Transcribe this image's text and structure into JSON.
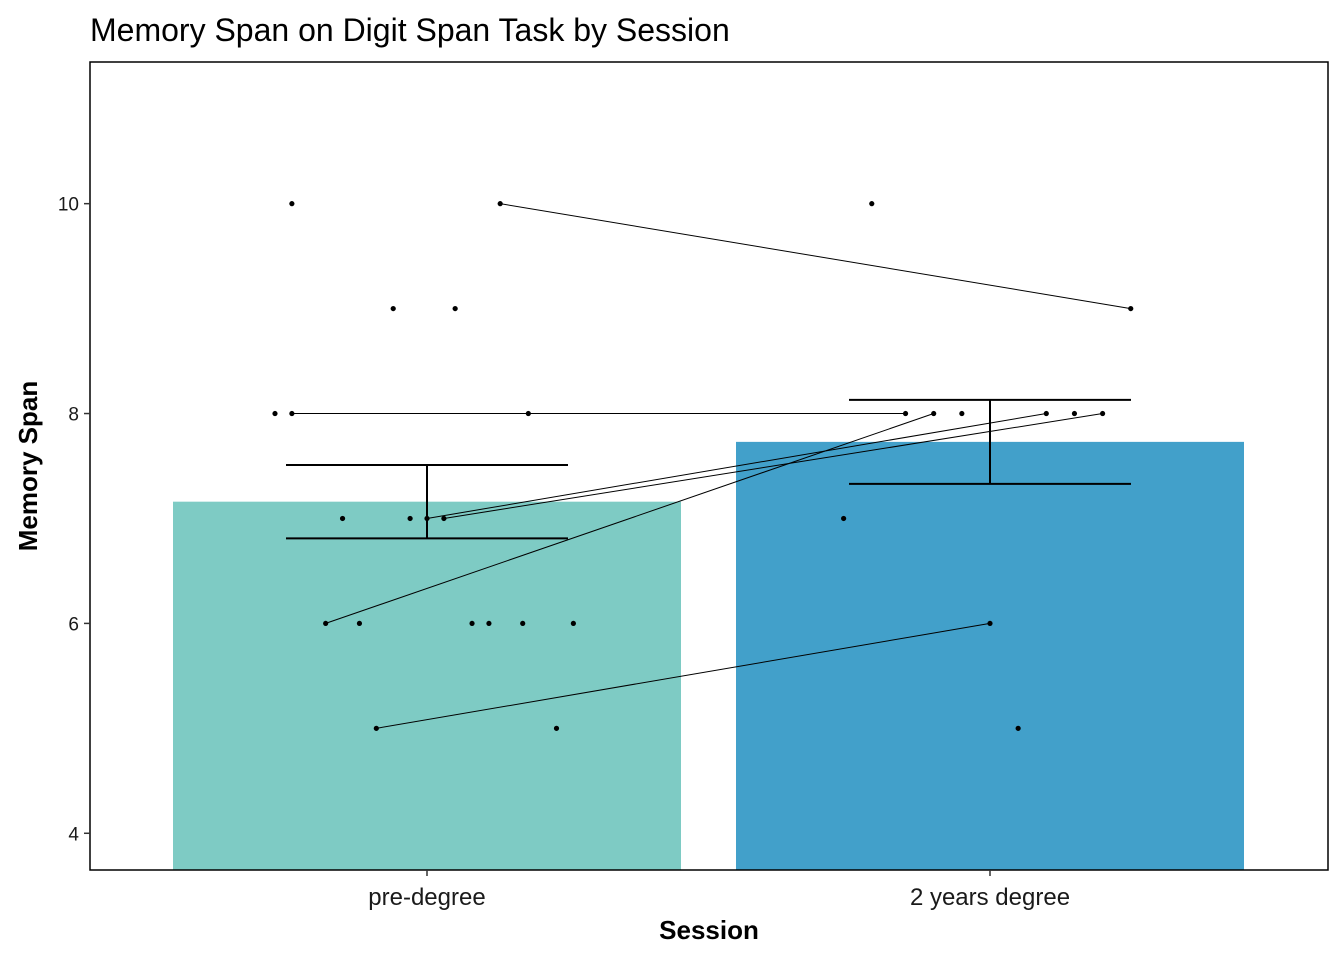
{
  "chart_data": {
    "type": "bar",
    "title": "Memory Span on Digit Span Task by Session",
    "xlabel": "Session",
    "ylabel": "Memory Span",
    "categories": [
      "pre-degree",
      "2 years degree"
    ],
    "values": [
      7.16,
      7.73
    ],
    "error_bars": [
      {
        "lower": 6.81,
        "upper": 7.51
      },
      {
        "lower": 7.33,
        "upper": 8.13
      }
    ],
    "bar_colors": [
      "#7ECBC4",
      "#42A0CA"
    ],
    "ylim": [
      3.65,
      11.35
    ],
    "yticks": [
      4,
      6,
      8,
      10
    ],
    "grid": false,
    "legend": "none",
    "points": [
      {
        "group": 0,
        "jitter": -0.24,
        "y": 10
      },
      {
        "group": 0,
        "jitter": 0.13,
        "y": 10
      },
      {
        "group": 0,
        "jitter": -0.06,
        "y": 9
      },
      {
        "group": 0,
        "jitter": 0.05,
        "y": 9
      },
      {
        "group": 0,
        "jitter": -0.27,
        "y": 8
      },
      {
        "group": 0,
        "jitter": -0.24,
        "y": 8
      },
      {
        "group": 0,
        "jitter": 0.18,
        "y": 8
      },
      {
        "group": 0,
        "jitter": -0.15,
        "y": 7
      },
      {
        "group": 0,
        "jitter": -0.03,
        "y": 7
      },
      {
        "group": 0,
        "jitter": 0.0,
        "y": 7
      },
      {
        "group": 0,
        "jitter": 0.03,
        "y": 7
      },
      {
        "group": 0,
        "jitter": -0.18,
        "y": 6
      },
      {
        "group": 0,
        "jitter": -0.12,
        "y": 6
      },
      {
        "group": 0,
        "jitter": 0.08,
        "y": 6
      },
      {
        "group": 0,
        "jitter": 0.11,
        "y": 6
      },
      {
        "group": 0,
        "jitter": 0.17,
        "y": 6
      },
      {
        "group": 0,
        "jitter": 0.26,
        "y": 6
      },
      {
        "group": 0,
        "jitter": -0.09,
        "y": 5
      },
      {
        "group": 0,
        "jitter": 0.23,
        "y": 5
      },
      {
        "group": 1,
        "jitter": -0.21,
        "y": 10
      },
      {
        "group": 1,
        "jitter": 0.25,
        "y": 9
      },
      {
        "group": 1,
        "jitter": -0.15,
        "y": 8
      },
      {
        "group": 1,
        "jitter": -0.1,
        "y": 8
      },
      {
        "group": 1,
        "jitter": -0.05,
        "y": 8
      },
      {
        "group": 1,
        "jitter": 0.1,
        "y": 8
      },
      {
        "group": 1,
        "jitter": 0.15,
        "y": 8
      },
      {
        "group": 1,
        "jitter": 0.2,
        "y": 8
      },
      {
        "group": 1,
        "jitter": -0.26,
        "y": 7
      },
      {
        "group": 1,
        "jitter": 0.0,
        "y": 6
      },
      {
        "group": 1,
        "jitter": 0.05,
        "y": 5
      }
    ],
    "pairs": [
      {
        "from": {
          "jitter": 0.13,
          "y": 10
        },
        "to": {
          "jitter": 0.25,
          "y": 9
        }
      },
      {
        "from": {
          "jitter": -0.24,
          "y": 8
        },
        "to": {
          "jitter": -0.15,
          "y": 8
        }
      },
      {
        "from": {
          "jitter": -0.18,
          "y": 6
        },
        "to": {
          "jitter": -0.1,
          "y": 8
        }
      },
      {
        "from": {
          "jitter": 0.0,
          "y": 7
        },
        "to": {
          "jitter": 0.1,
          "y": 8
        }
      },
      {
        "from": {
          "jitter": 0.03,
          "y": 7
        },
        "to": {
          "jitter": 0.2,
          "y": 8
        }
      },
      {
        "from": {
          "jitter": -0.09,
          "y": 5
        },
        "to": {
          "jitter": 0.0,
          "y": 6
        }
      }
    ]
  }
}
